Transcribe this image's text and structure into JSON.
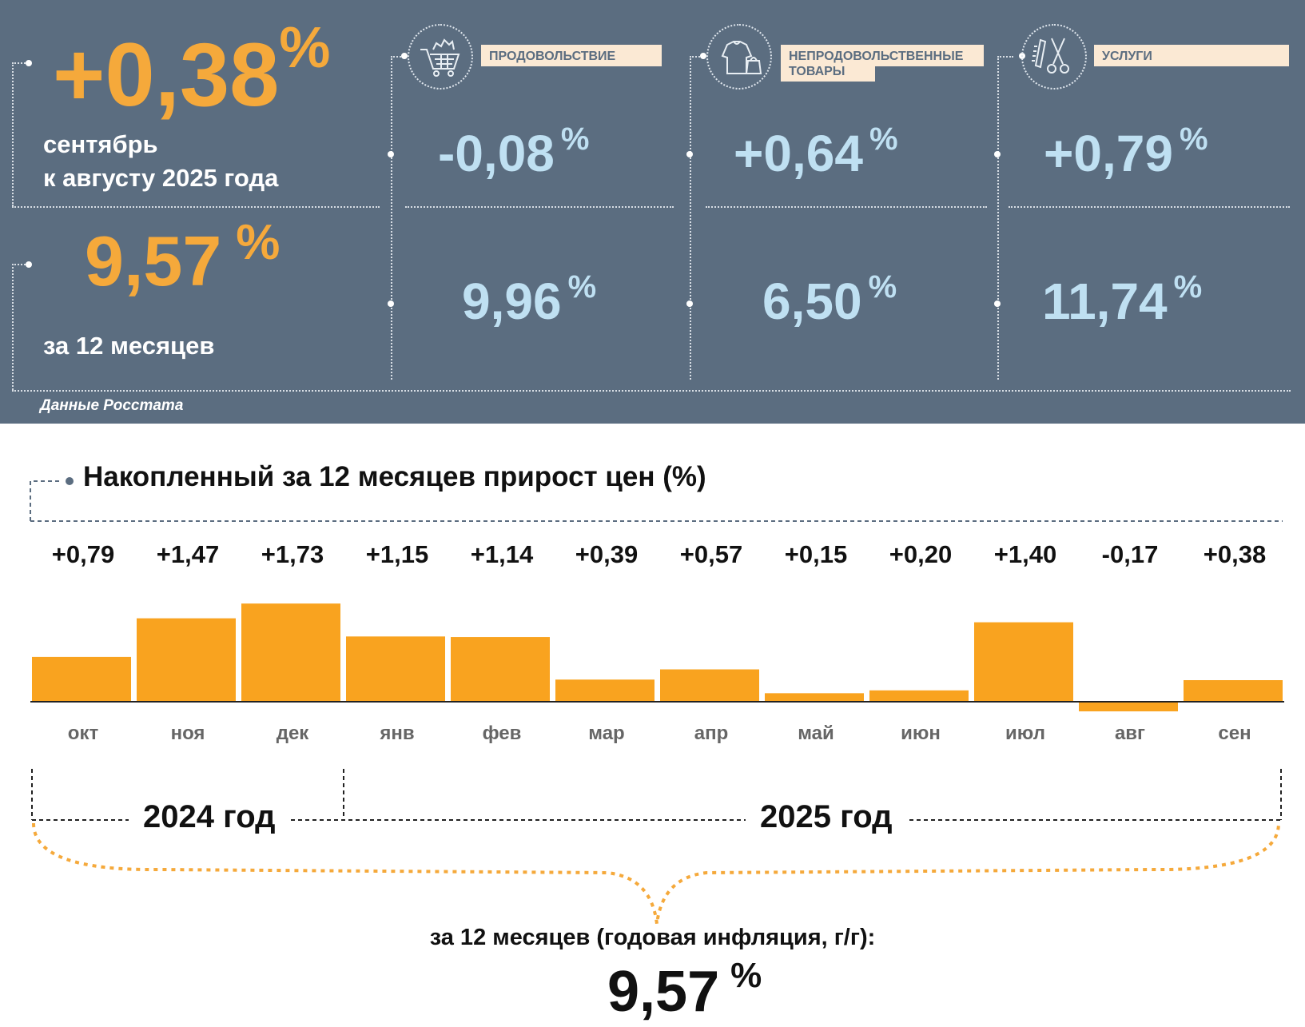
{
  "summary": {
    "monthly": {
      "value": "+0,38",
      "unit": "%",
      "line1": "сентябрь",
      "line2": "к августу 2025 года"
    },
    "annual": {
      "value": "9,57",
      "unit": "%",
      "label": "за 12 месяцев"
    },
    "source": "Данные Росстата"
  },
  "categories": [
    {
      "label": "ПРОДОВОЛЬСТВИЕ",
      "icon": "shopping-cart-icon",
      "monthly": "-0,08",
      "annual": "9,96",
      "unit": "%"
    },
    {
      "label_line1": "НЕПРОДОВОЛЬСТВЕННЫЕ",
      "label_line2": "ТОВАРЫ",
      "icon": "clothes-bag-icon",
      "monthly": "+0,64",
      "annual": "6,50",
      "unit": "%"
    },
    {
      "label": "УСЛУГИ",
      "icon": "comb-scissors-icon",
      "monthly": "+0,79",
      "annual": "11,74",
      "unit": "%"
    }
  ],
  "chart_data": {
    "type": "bar",
    "title": "Накопленный за 12 месяцев прирост цен (%)",
    "categories": [
      "окт",
      "ноя",
      "дек",
      "янв",
      "фев",
      "мар",
      "апр",
      "май",
      "июн",
      "июл",
      "авг",
      "сен"
    ],
    "values": [
      0.79,
      1.47,
      1.73,
      1.15,
      1.14,
      0.39,
      0.57,
      0.15,
      0.2,
      1.4,
      -0.17,
      0.38
    ],
    "value_labels": [
      "+0,79",
      "+1,47",
      "+1,73",
      "+1,15",
      "+1,14",
      "+0,39",
      "+0,57",
      "+0,15",
      "+0,20",
      "+1,40",
      "-0,17",
      "+0,38"
    ],
    "years": [
      {
        "label": "2024 год",
        "months": [
          "окт",
          "ноя",
          "дек"
        ]
      },
      {
        "label": "2025 год",
        "months": [
          "янв",
          "фев",
          "мар",
          "апр",
          "май",
          "июн",
          "июл",
          "авг",
          "сен"
        ]
      }
    ],
    "total_label": "за 12 месяцев (годовая инфляция, г/г):",
    "total_value": "9,57",
    "total_unit": "%"
  },
  "colors": {
    "panel": "#5b6d80",
    "accent": "#f5a93b",
    "value": "#bfe0f2",
    "bar": "#f9a31f",
    "label_bg": "#fbe9d4"
  }
}
